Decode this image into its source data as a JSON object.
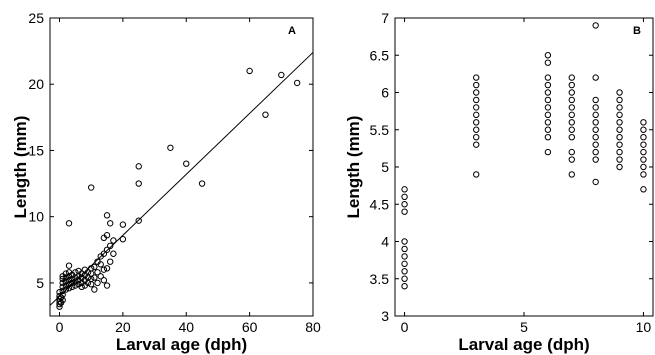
{
  "chart_data": [
    {
      "type": "scatter",
      "panel_label": "A",
      "xlabel": "Larval age (dph)",
      "ylabel": "Length (mm)",
      "xlim": [
        -3,
        80
      ],
      "ylim": [
        2.5,
        25
      ],
      "xticks": [
        0,
        20,
        40,
        60,
        80
      ],
      "yticks": [
        5,
        10,
        15,
        20,
        25
      ],
      "grid": false,
      "legend": "none",
      "marker": "open-circle",
      "fit_line": {
        "x": [
          -3,
          80
        ],
        "y": [
          3.3,
          22.4
        ]
      },
      "series": [
        {
          "points": [
            [
              0,
              3.2
            ],
            [
              0,
              3.4
            ],
            [
              0,
              3.6
            ],
            [
              0,
              3.8
            ],
            [
              0,
              4.0
            ],
            [
              0,
              4.3
            ],
            [
              0.5,
              3.5
            ],
            [
              0.5,
              3.9
            ],
            [
              1,
              3.7
            ],
            [
              1,
              4.1
            ],
            [
              1,
              4.4
            ],
            [
              1,
              4.7
            ],
            [
              1,
              5.0
            ],
            [
              1,
              5.3
            ],
            [
              1,
              5.5
            ],
            [
              2,
              4.5
            ],
            [
              2,
              4.8
            ],
            [
              2,
              5.1
            ],
            [
              2,
              5.4
            ],
            [
              2,
              5.7
            ],
            [
              3,
              4.6
            ],
            [
              3,
              4.9
            ],
            [
              3,
              5.2
            ],
            [
              3,
              5.5
            ],
            [
              3,
              5.8
            ],
            [
              3,
              6.3
            ],
            [
              3,
              9.5
            ],
            [
              4,
              4.7
            ],
            [
              4,
              5.0
            ],
            [
              4,
              5.3
            ],
            [
              4,
              5.6
            ],
            [
              5,
              4.8
            ],
            [
              5,
              5.1
            ],
            [
              5,
              5.4
            ],
            [
              5,
              5.8
            ],
            [
              6,
              4.9
            ],
            [
              6,
              5.2
            ],
            [
              6,
              5.5
            ],
            [
              6,
              5.9
            ],
            [
              7,
              4.7
            ],
            [
              7,
              5.0
            ],
            [
              7,
              5.4
            ],
            [
              7,
              5.7
            ],
            [
              8,
              4.8
            ],
            [
              8,
              5.2
            ],
            [
              8,
              5.6
            ],
            [
              8,
              6.0
            ],
            [
              9,
              5.0
            ],
            [
              9,
              5.4
            ],
            [
              9,
              5.8
            ],
            [
              10,
              4.9
            ],
            [
              10,
              5.3
            ],
            [
              10,
              5.7
            ],
            [
              10,
              6.1
            ],
            [
              10,
              12.2
            ],
            [
              11,
              4.5
            ],
            [
              11,
              5.4
            ],
            [
              11,
              6.2
            ],
            [
              12,
              5.0
            ],
            [
              12,
              5.8
            ],
            [
              12,
              6.6
            ],
            [
              13,
              5.5
            ],
            [
              13,
              6.4
            ],
            [
              13,
              7.0
            ],
            [
              14,
              5.2
            ],
            [
              14,
              6.0
            ],
            [
              14,
              7.2
            ],
            [
              14,
              8.4
            ],
            [
              15,
              4.8
            ],
            [
              15,
              6.1
            ],
            [
              15,
              7.5
            ],
            [
              15,
              8.6
            ],
            [
              15,
              10.1
            ],
            [
              16,
              6.6
            ],
            [
              16,
              7.8
            ],
            [
              16,
              9.5
            ],
            [
              17,
              7.2
            ],
            [
              17,
              8.2
            ],
            [
              20,
              8.3
            ],
            [
              20,
              9.4
            ],
            [
              25,
              9.7
            ],
            [
              25,
              12.5
            ],
            [
              25,
              13.8
            ],
            [
              35,
              15.2
            ],
            [
              40,
              14.0
            ],
            [
              45,
              12.5
            ],
            [
              60,
              21.0
            ],
            [
              65,
              17.7
            ],
            [
              70,
              20.7
            ],
            [
              75,
              20.1
            ]
          ]
        }
      ]
    },
    {
      "type": "scatter",
      "panel_label": "B",
      "xlabel": "Larval age (dph)",
      "ylabel": "Length (mm)",
      "xlim": [
        -0.4,
        10.4
      ],
      "ylim": [
        3,
        7
      ],
      "xticks": [
        0,
        5,
        10
      ],
      "yticks": [
        3,
        3.5,
        4,
        4.5,
        5,
        5.5,
        6,
        6.5,
        7
      ],
      "grid": false,
      "legend": "none",
      "marker": "open-circle",
      "series": [
        {
          "points": [
            [
              0,
              3.4
            ],
            [
              0,
              3.5
            ],
            [
              0,
              3.6
            ],
            [
              0,
              3.7
            ],
            [
              0,
              3.8
            ],
            [
              0,
              3.9
            ],
            [
              0,
              4.0
            ],
            [
              0,
              4.4
            ],
            [
              0,
              4.5
            ],
            [
              0,
              4.6
            ],
            [
              0,
              4.7
            ],
            [
              3,
              4.9
            ],
            [
              3,
              5.3
            ],
            [
              3,
              5.4
            ],
            [
              3,
              5.5
            ],
            [
              3,
              5.6
            ],
            [
              3,
              5.7
            ],
            [
              3,
              5.8
            ],
            [
              3,
              5.9
            ],
            [
              3,
              6.0
            ],
            [
              3,
              6.1
            ],
            [
              3,
              6.2
            ],
            [
              6,
              5.2
            ],
            [
              6,
              5.4
            ],
            [
              6,
              5.5
            ],
            [
              6,
              5.6
            ],
            [
              6,
              5.7
            ],
            [
              6,
              5.8
            ],
            [
              6,
              5.9
            ],
            [
              6,
              6.0
            ],
            [
              6,
              6.1
            ],
            [
              6,
              6.2
            ],
            [
              6,
              6.4
            ],
            [
              6,
              6.5
            ],
            [
              7,
              4.9
            ],
            [
              7,
              5.1
            ],
            [
              7,
              5.2
            ],
            [
              7,
              5.4
            ],
            [
              7,
              5.5
            ],
            [
              7,
              5.6
            ],
            [
              7,
              5.7
            ],
            [
              7,
              5.8
            ],
            [
              7,
              5.9
            ],
            [
              7,
              6.0
            ],
            [
              7,
              6.1
            ],
            [
              7,
              6.2
            ],
            [
              8,
              4.8
            ],
            [
              8,
              5.1
            ],
            [
              8,
              5.2
            ],
            [
              8,
              5.3
            ],
            [
              8,
              5.4
            ],
            [
              8,
              5.5
            ],
            [
              8,
              5.6
            ],
            [
              8,
              5.7
            ],
            [
              8,
              5.8
            ],
            [
              8,
              5.9
            ],
            [
              8,
              6.2
            ],
            [
              8,
              6.9
            ],
            [
              9,
              5.0
            ],
            [
              9,
              5.1
            ],
            [
              9,
              5.2
            ],
            [
              9,
              5.3
            ],
            [
              9,
              5.4
            ],
            [
              9,
              5.5
            ],
            [
              9,
              5.6
            ],
            [
              9,
              5.7
            ],
            [
              9,
              5.8
            ],
            [
              9,
              5.9
            ],
            [
              9,
              6.0
            ],
            [
              10,
              4.7
            ],
            [
              10,
              4.9
            ],
            [
              10,
              5.0
            ],
            [
              10,
              5.1
            ],
            [
              10,
              5.2
            ],
            [
              10,
              5.3
            ],
            [
              10,
              5.4
            ],
            [
              10,
              5.5
            ],
            [
              10,
              5.6
            ]
          ]
        }
      ]
    }
  ]
}
